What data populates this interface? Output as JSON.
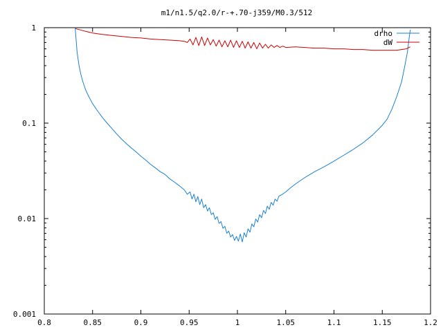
{
  "chart_data": {
    "type": "line",
    "title": "m1/n1.5/q2.0/r-+.70-j359/M0.3/512",
    "xlabel": "",
    "ylabel": "",
    "xlim": [
      0.8,
      1.2
    ],
    "ylim": [
      0.001,
      1
    ],
    "yscale": "log",
    "grid": false,
    "legend": "top-right",
    "x_ticks": [
      0.8,
      0.85,
      0.9,
      0.95,
      1,
      1.05,
      1.1,
      1.15,
      1.2
    ],
    "x_tick_labels": [
      "0.8",
      "0.85",
      "0.9",
      "0.95",
      "1",
      "1.05",
      "1.1",
      "1.15",
      "1.2"
    ],
    "y_ticks": [
      0.001,
      0.01,
      0.1,
      1
    ],
    "y_tick_labels": [
      "0.001",
      "0.01",
      "0.1",
      "1"
    ],
    "series": [
      {
        "name": "drho",
        "color": "#1a80d0",
        "points": [
          [
            0.832,
            1.0
          ],
          [
            0.834,
            0.55
          ],
          [
            0.836,
            0.4
          ],
          [
            0.838,
            0.32
          ],
          [
            0.84,
            0.27
          ],
          [
            0.843,
            0.22
          ],
          [
            0.846,
            0.19
          ],
          [
            0.85,
            0.16
          ],
          [
            0.855,
            0.135
          ],
          [
            0.86,
            0.115
          ],
          [
            0.865,
            0.1
          ],
          [
            0.87,
            0.088
          ],
          [
            0.875,
            0.077
          ],
          [
            0.88,
            0.068
          ],
          [
            0.885,
            0.061
          ],
          [
            0.89,
            0.055
          ],
          [
            0.895,
            0.05
          ],
          [
            0.9,
            0.045
          ],
          [
            0.905,
            0.041
          ],
          [
            0.91,
            0.037
          ],
          [
            0.915,
            0.034
          ],
          [
            0.92,
            0.031
          ],
          [
            0.925,
            0.029
          ],
          [
            0.93,
            0.026
          ],
          [
            0.935,
            0.024
          ],
          [
            0.94,
            0.022
          ],
          [
            0.945,
            0.02
          ],
          [
            0.948,
            0.018
          ],
          [
            0.951,
            0.019
          ],
          [
            0.953,
            0.016
          ],
          [
            0.955,
            0.018
          ],
          [
            0.957,
            0.015
          ],
          [
            0.959,
            0.017
          ],
          [
            0.961,
            0.014
          ],
          [
            0.963,
            0.016
          ],
          [
            0.965,
            0.013
          ],
          [
            0.967,
            0.014
          ],
          [
            0.969,
            0.012
          ],
          [
            0.971,
            0.013
          ],
          [
            0.973,
            0.011
          ],
          [
            0.975,
            0.0115
          ],
          [
            0.977,
            0.0098
          ],
          [
            0.979,
            0.0105
          ],
          [
            0.981,
            0.0089
          ],
          [
            0.983,
            0.0093
          ],
          [
            0.985,
            0.0079
          ],
          [
            0.987,
            0.0083
          ],
          [
            0.989,
            0.007
          ],
          [
            0.991,
            0.0074
          ],
          [
            0.993,
            0.0064
          ],
          [
            0.995,
            0.0068
          ],
          [
            0.997,
            0.0059
          ],
          [
            0.999,
            0.0065
          ],
          [
            1.001,
            0.0058
          ],
          [
            1.003,
            0.0069
          ],
          [
            1.005,
            0.0057
          ],
          [
            1.007,
            0.0071
          ],
          [
            1.009,
            0.0064
          ],
          [
            1.011,
            0.0078
          ],
          [
            1.013,
            0.0072
          ],
          [
            1.015,
            0.0088
          ],
          [
            1.017,
            0.0082
          ],
          [
            1.019,
            0.0099
          ],
          [
            1.021,
            0.0092
          ],
          [
            1.023,
            0.011
          ],
          [
            1.025,
            0.0102
          ],
          [
            1.027,
            0.0122
          ],
          [
            1.029,
            0.0113
          ],
          [
            1.031,
            0.0135
          ],
          [
            1.033,
            0.0125
          ],
          [
            1.035,
            0.0148
          ],
          [
            1.037,
            0.0138
          ],
          [
            1.039,
            0.016
          ],
          [
            1.041,
            0.0152
          ],
          [
            1.043,
            0.0172
          ],
          [
            1.046,
            0.0178
          ],
          [
            1.05,
            0.019
          ],
          [
            1.055,
            0.021
          ],
          [
            1.06,
            0.023
          ],
          [
            1.07,
            0.027
          ],
          [
            1.08,
            0.031
          ],
          [
            1.09,
            0.035
          ],
          [
            1.1,
            0.04
          ],
          [
            1.11,
            0.046
          ],
          [
            1.12,
            0.053
          ],
          [
            1.13,
            0.062
          ],
          [
            1.14,
            0.075
          ],
          [
            1.15,
            0.095
          ],
          [
            1.155,
            0.11
          ],
          [
            1.16,
            0.14
          ],
          [
            1.165,
            0.19
          ],
          [
            1.17,
            0.27
          ],
          [
            1.173,
            0.38
          ],
          [
            1.176,
            0.55
          ],
          [
            1.178,
            0.8
          ],
          [
            1.179,
            0.95
          ]
        ]
      },
      {
        "name": "dW",
        "color": "#cc0000",
        "points": [
          [
            0.832,
            0.98
          ],
          [
            0.84,
            0.93
          ],
          [
            0.85,
            0.88
          ],
          [
            0.86,
            0.85
          ],
          [
            0.87,
            0.83
          ],
          [
            0.88,
            0.81
          ],
          [
            0.89,
            0.79
          ],
          [
            0.9,
            0.78
          ],
          [
            0.91,
            0.76
          ],
          [
            0.92,
            0.75
          ],
          [
            0.93,
            0.74
          ],
          [
            0.94,
            0.73
          ],
          [
            0.945,
            0.72
          ],
          [
            0.948,
            0.7
          ],
          [
            0.951,
            0.76
          ],
          [
            0.954,
            0.66
          ],
          [
            0.957,
            0.79
          ],
          [
            0.96,
            0.65
          ],
          [
            0.963,
            0.8
          ],
          [
            0.966,
            0.65
          ],
          [
            0.969,
            0.78
          ],
          [
            0.972,
            0.66
          ],
          [
            0.975,
            0.75
          ],
          [
            0.978,
            0.64
          ],
          [
            0.981,
            0.74
          ],
          [
            0.984,
            0.63
          ],
          [
            0.987,
            0.73
          ],
          [
            0.99,
            0.63
          ],
          [
            0.993,
            0.74
          ],
          [
            0.996,
            0.62
          ],
          [
            0.999,
            0.73
          ],
          [
            1.002,
            0.62
          ],
          [
            1.005,
            0.72
          ],
          [
            1.008,
            0.61
          ],
          [
            1.011,
            0.71
          ],
          [
            1.014,
            0.61
          ],
          [
            1.017,
            0.7
          ],
          [
            1.02,
            0.6
          ],
          [
            1.023,
            0.69
          ],
          [
            1.026,
            0.61
          ],
          [
            1.029,
            0.67
          ],
          [
            1.032,
            0.61
          ],
          [
            1.035,
            0.66
          ],
          [
            1.038,
            0.62
          ],
          [
            1.041,
            0.65
          ],
          [
            1.044,
            0.62
          ],
          [
            1.047,
            0.64
          ],
          [
            1.05,
            0.62
          ],
          [
            1.06,
            0.63
          ],
          [
            1.07,
            0.62
          ],
          [
            1.08,
            0.61
          ],
          [
            1.09,
            0.61
          ],
          [
            1.1,
            0.6
          ],
          [
            1.11,
            0.6
          ],
          [
            1.12,
            0.59
          ],
          [
            1.13,
            0.59
          ],
          [
            1.14,
            0.58
          ],
          [
            1.15,
            0.58
          ],
          [
            1.16,
            0.58
          ],
          [
            1.165,
            0.58
          ],
          [
            1.17,
            0.59
          ],
          [
            1.175,
            0.6
          ],
          [
            1.179,
            0.63
          ]
        ]
      }
    ]
  }
}
